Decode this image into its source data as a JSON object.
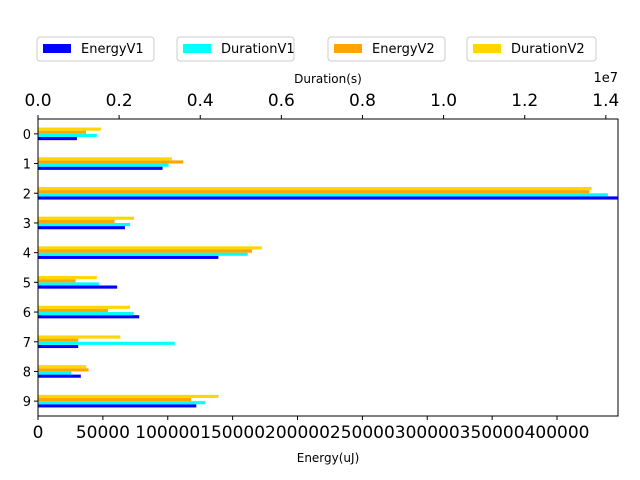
{
  "chart_data": {
    "type": "bar",
    "orientation": "horizontal",
    "categories": [
      "0",
      "1",
      "2",
      "3",
      "4",
      "5",
      "6",
      "7",
      "8",
      "9"
    ],
    "xlabel": "Energy(uJ)",
    "x2label": "Duration(s)",
    "x2_offset_label": "1e7",
    "xlim": [
      0,
      447000
    ],
    "x2lim": [
      0,
      1.43
    ],
    "x_ticks": [
      "0",
      "50000",
      "100000",
      "150000",
      "200000",
      "250000",
      "300000",
      "350000",
      "400000"
    ],
    "x_tick_values": [
      0,
      50000,
      100000,
      150000,
      200000,
      250000,
      300000,
      350000,
      400000
    ],
    "x2_ticks": [
      "0.0",
      "0.2",
      "0.4",
      "0.6",
      "0.8",
      "1.0",
      "1.2",
      "1.4"
    ],
    "x2_tick_values": [
      0,
      0.2,
      0.4,
      0.6,
      0.8,
      1.0,
      1.2,
      1.4
    ],
    "legend_position": "top",
    "series": [
      {
        "name": "EnergyV1",
        "color": "#0000ff",
        "axis": "energy",
        "values": [
          30000,
          96000,
          447000,
          67000,
          139000,
          61000,
          78000,
          31000,
          33000,
          122000
        ]
      },
      {
        "name": "DurationV1",
        "color": "#00ffff",
        "axis": "duration",
        "values": [
          0.145,
          0.322,
          1.405,
          0.227,
          0.517,
          0.15,
          0.236,
          0.337,
          0.082,
          0.412
        ]
      },
      {
        "name": "EnergyV2",
        "color": "#ffa500",
        "axis": "energy",
        "values": [
          37000,
          112000,
          425000,
          59000,
          165000,
          29000,
          54000,
          31000,
          39000,
          118000
        ]
      },
      {
        "name": "DurationV2",
        "color": "#ffd700",
        "axis": "duration",
        "values": [
          0.155,
          0.33,
          1.365,
          0.237,
          0.552,
          0.145,
          0.227,
          0.203,
          0.119,
          0.445
        ]
      }
    ]
  }
}
